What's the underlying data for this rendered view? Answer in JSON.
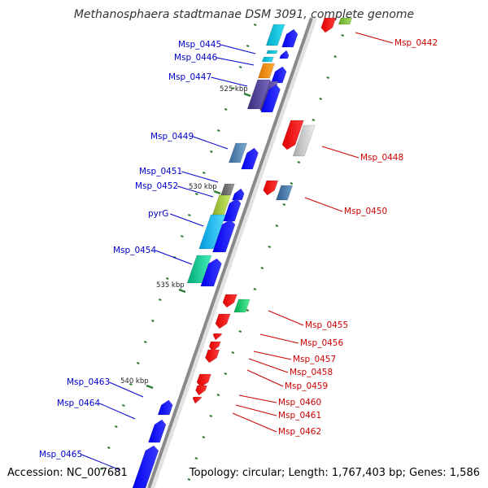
{
  "title": "Methanosphaera stadtmanae DSM 3091, complete genome",
  "footer": {
    "accession": "Accession: NC_007681",
    "stats": "Topology: circular; Length: 1,767,403 bp; Genes: 1,586"
  },
  "colors": {
    "plus_label": "#0000cc",
    "minus_label": "#cc0000",
    "backbone": "#8a8a8a",
    "tick": "#2e7d32"
  },
  "kbp_markers": [
    "525 kbp",
    "530 kbp",
    "535 kbp",
    "540 kbp"
  ],
  "plus_strand_labels": [
    "Msp_0445",
    "Msp_0446",
    "Msp_0447",
    "Msp_0449",
    "Msp_0451",
    "Msp_0452",
    "pyrG",
    "Msp_0454",
    "Msp_0463",
    "Msp_0464",
    "Msp_0465"
  ],
  "minus_strand_labels": [
    "Msp_0442",
    "Msp_0448",
    "Msp_0450",
    "Msp_0455",
    "Msp_0456",
    "Msp_0457",
    "Msp_0458",
    "Msp_0459",
    "Msp_0460",
    "Msp_0461",
    "Msp_0462"
  ]
}
